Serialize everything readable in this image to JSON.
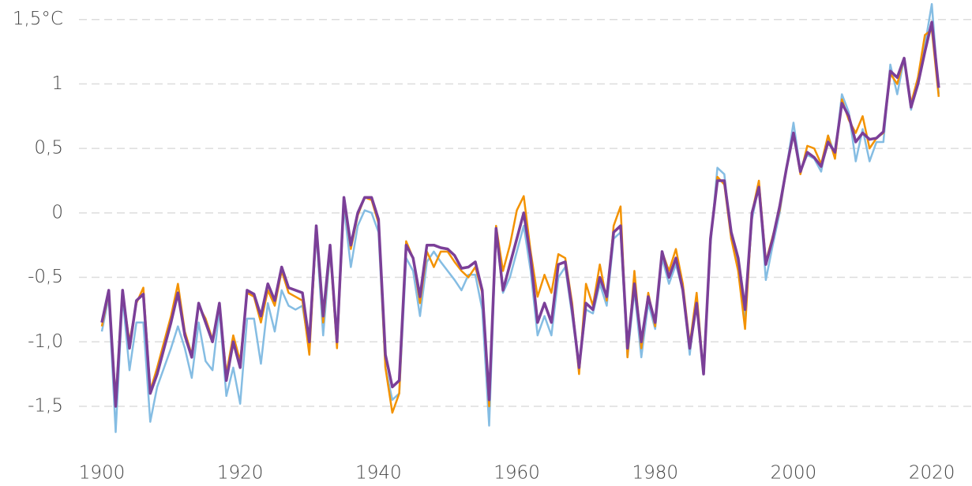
{
  "chart_data": {
    "type": "line",
    "x": [
      1900,
      1901,
      1902,
      1903,
      1904,
      1905,
      1906,
      1907,
      1908,
      1909,
      1910,
      1911,
      1912,
      1913,
      1914,
      1915,
      1916,
      1917,
      1918,
      1919,
      1920,
      1921,
      1922,
      1923,
      1924,
      1925,
      1926,
      1927,
      1928,
      1929,
      1930,
      1931,
      1932,
      1933,
      1934,
      1935,
      1936,
      1937,
      1938,
      1939,
      1940,
      1941,
      1942,
      1943,
      1944,
      1945,
      1946,
      1947,
      1948,
      1949,
      1950,
      1951,
      1952,
      1953,
      1954,
      1955,
      1956,
      1957,
      1958,
      1959,
      1960,
      1961,
      1962,
      1963,
      1964,
      1965,
      1966,
      1967,
      1968,
      1969,
      1970,
      1971,
      1972,
      1973,
      1974,
      1975,
      1976,
      1977,
      1978,
      1979,
      1980,
      1981,
      1982,
      1983,
      1984,
      1985,
      1986,
      1987,
      1988,
      1989,
      1990,
      1991,
      1992,
      1993,
      1994,
      1995,
      1996,
      1997,
      1998,
      1999,
      2000,
      2001,
      2002,
      2003,
      2004,
      2005,
      2006,
      2007,
      2008,
      2009,
      2010,
      2011,
      2012,
      2013,
      2014,
      2015,
      2016,
      2017,
      2018,
      2019,
      2020,
      2021
    ],
    "series": [
      {
        "color": "#85bde3",
        "values": [
          -0.92,
          -0.65,
          -1.7,
          -0.65,
          -1.22,
          -0.85,
          -0.85,
          -1.62,
          -1.35,
          -1.2,
          -1.05,
          -0.88,
          -1.05,
          -1.28,
          -0.85,
          -1.15,
          -1.22,
          -0.75,
          -1.42,
          -1.2,
          -1.48,
          -0.82,
          -0.82,
          -1.17,
          -0.7,
          -0.92,
          -0.6,
          -0.72,
          -0.75,
          -0.72,
          -1.05,
          -0.15,
          -0.95,
          -0.3,
          -0.95,
          0.05,
          -0.42,
          -0.1,
          0.02,
          0.0,
          -0.15,
          -1.2,
          -1.45,
          -1.4,
          -0.35,
          -0.45,
          -0.8,
          -0.38,
          -0.3,
          -0.38,
          -0.45,
          -0.52,
          -0.6,
          -0.48,
          -0.48,
          -0.75,
          -1.65,
          -0.15,
          -0.62,
          -0.5,
          -0.3,
          -0.1,
          -0.45,
          -0.95,
          -0.8,
          -0.95,
          -0.5,
          -0.42,
          -0.8,
          -1.2,
          -0.75,
          -0.78,
          -0.55,
          -0.72,
          -0.2,
          -0.15,
          -1.12,
          -0.6,
          -1.12,
          -0.7,
          -0.9,
          -0.35,
          -0.55,
          -0.4,
          -0.6,
          -1.1,
          -0.65,
          -1.25,
          -0.25,
          0.35,
          0.3,
          -0.2,
          -0.38,
          -0.8,
          -0.05,
          0.22,
          -0.52,
          -0.25,
          0.0,
          0.35,
          0.7,
          0.33,
          0.45,
          0.42,
          0.32,
          0.6,
          0.45,
          0.92,
          0.78,
          0.4,
          0.65,
          0.4,
          0.55,
          0.55,
          1.15,
          0.92,
          1.2,
          0.8,
          1.05,
          1.3,
          1.62,
          0.92
        ]
      },
      {
        "color": "#f39200",
        "values": [
          -0.88,
          -0.62,
          -1.45,
          -0.62,
          -1.0,
          -0.7,
          -0.58,
          -1.38,
          -1.2,
          -1.0,
          -0.8,
          -0.55,
          -0.92,
          -1.1,
          -0.72,
          -0.82,
          -0.98,
          -0.72,
          -1.25,
          -0.95,
          -1.15,
          -0.62,
          -0.65,
          -0.85,
          -0.6,
          -0.72,
          -0.45,
          -0.62,
          -0.65,
          -0.68,
          -1.1,
          -0.12,
          -0.85,
          -0.28,
          -1.05,
          0.1,
          -0.28,
          -0.02,
          0.12,
          0.1,
          -0.08,
          -1.2,
          -1.55,
          -1.4,
          -0.22,
          -0.35,
          -0.7,
          -0.3,
          -0.42,
          -0.3,
          -0.3,
          -0.38,
          -0.45,
          -0.5,
          -0.42,
          -0.62,
          -1.5,
          -0.1,
          -0.45,
          -0.25,
          0.02,
          0.13,
          -0.3,
          -0.65,
          -0.48,
          -0.62,
          -0.32,
          -0.35,
          -0.7,
          -1.25,
          -0.55,
          -0.72,
          -0.4,
          -0.68,
          -0.1,
          0.05,
          -1.12,
          -0.45,
          -1.05,
          -0.62,
          -0.88,
          -0.3,
          -0.45,
          -0.28,
          -0.55,
          -1.02,
          -0.62,
          -1.25,
          -0.2,
          0.28,
          0.22,
          -0.2,
          -0.45,
          -0.9,
          0.0,
          0.25,
          -0.38,
          -0.18,
          0.02,
          0.35,
          0.62,
          0.3,
          0.52,
          0.5,
          0.38,
          0.6,
          0.42,
          0.88,
          0.72,
          0.62,
          0.75,
          0.5,
          0.58,
          0.62,
          1.08,
          1.0,
          1.2,
          0.85,
          1.05,
          1.38,
          1.42,
          0.9
        ]
      },
      {
        "color": "#7b3f98",
        "values": [
          -0.85,
          -0.6,
          -1.5,
          -0.6,
          -1.05,
          -0.68,
          -0.63,
          -1.4,
          -1.25,
          -1.05,
          -0.85,
          -0.62,
          -0.95,
          -1.12,
          -0.7,
          -0.85,
          -1.0,
          -0.7,
          -1.3,
          -1.0,
          -1.2,
          -0.6,
          -0.63,
          -0.8,
          -0.55,
          -0.68,
          -0.42,
          -0.58,
          -0.6,
          -0.62,
          -1.0,
          -0.1,
          -0.8,
          -0.25,
          -1.0,
          0.12,
          -0.25,
          0.0,
          0.12,
          0.12,
          -0.05,
          -1.1,
          -1.35,
          -1.3,
          -0.25,
          -0.35,
          -0.65,
          -0.25,
          -0.25,
          -0.27,
          -0.28,
          -0.33,
          -0.43,
          -0.42,
          -0.38,
          -0.6,
          -1.45,
          -0.12,
          -0.6,
          -0.4,
          -0.2,
          0.0,
          -0.35,
          -0.85,
          -0.7,
          -0.85,
          -0.4,
          -0.38,
          -0.75,
          -1.2,
          -0.7,
          -0.75,
          -0.5,
          -0.65,
          -0.15,
          -0.1,
          -1.05,
          -0.55,
          -1.0,
          -0.65,
          -0.85,
          -0.3,
          -0.5,
          -0.35,
          -0.6,
          -1.05,
          -0.7,
          -1.25,
          -0.2,
          0.25,
          0.25,
          -0.15,
          -0.35,
          -0.75,
          0.0,
          0.2,
          -0.4,
          -0.2,
          0.05,
          0.35,
          0.62,
          0.32,
          0.47,
          0.43,
          0.36,
          0.55,
          0.47,
          0.85,
          0.75,
          0.55,
          0.62,
          0.57,
          0.58,
          0.63,
          1.1,
          1.05,
          1.2,
          0.82,
          1.0,
          1.25,
          1.48,
          0.97
        ]
      }
    ],
    "xlim": [
      1897,
      2025
    ],
    "xticks": [
      1900,
      1920,
      1940,
      1960,
      1980,
      2000,
      2020
    ],
    "ylim": [
      -1.8,
      1.65
    ],
    "yticks": [
      {
        "value": -1.5,
        "label": "-1,5"
      },
      {
        "value": -1,
        "label": "-1,0"
      },
      {
        "value": -0.5,
        "label": "-0,5"
      },
      0,
      {
        "value": 0.5,
        "label": "0,5"
      },
      1,
      {
        "value": 1.5,
        "label": "1,5°C"
      }
    ],
    "grid": true
  }
}
